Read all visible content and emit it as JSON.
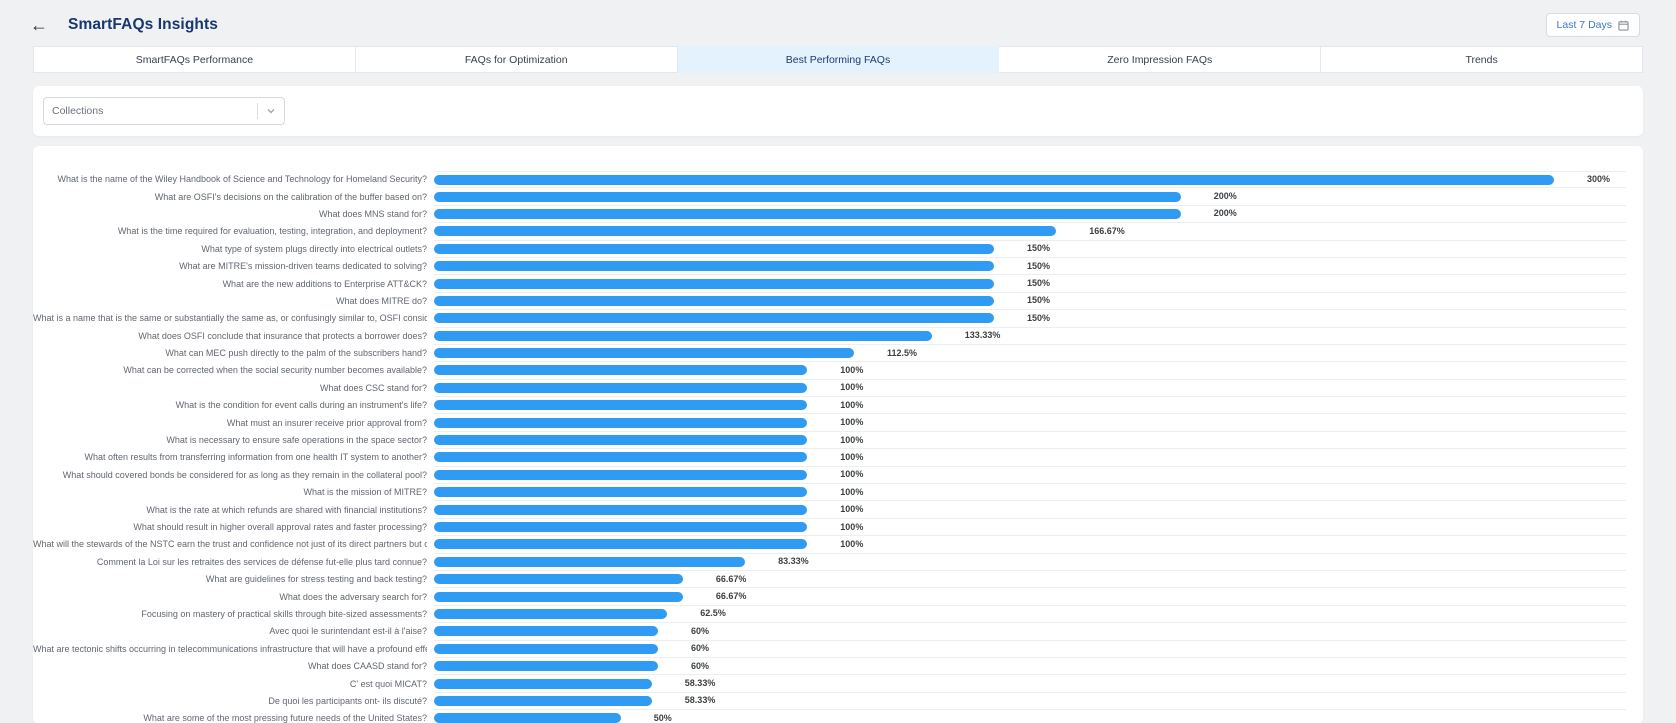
{
  "header": {
    "back_icon": "arrow-left",
    "title": "SmartFAQs Insights",
    "date_range": {
      "label": "Last 7 Days",
      "icon": "calendar"
    }
  },
  "tabs": [
    {
      "label": "SmartFAQs Performance",
      "active": false
    },
    {
      "label": "FAQs for Optimization",
      "active": false
    },
    {
      "label": "Best Performing FAQs",
      "active": true
    },
    {
      "label": "Zero Impression FAQs",
      "active": false
    },
    {
      "label": "Trends",
      "active": false
    }
  ],
  "filters": {
    "collections": {
      "value": "Collections",
      "icon": "chevron-down"
    }
  },
  "colors": {
    "accent_blue": "#2F9BF2",
    "active_tab_bg": "#E3F2FD",
    "title_navy": "#17376E",
    "link_blue": "#3E78C9"
  },
  "chart_data": {
    "type": "bar",
    "orientation": "horizontal",
    "title": "",
    "xlabel": "",
    "ylabel": "",
    "xlim": [
      0,
      300
    ],
    "grid": "row-separators",
    "bar_color": "#2F9BF2",
    "categories": [
      "What is the name of the Wiley Handbook of Science and Technology for Homeland Security?",
      "What are OSFI's decisions on the calibration of the buffer based on?",
      "What does MNS stand for?",
      "What is the time required for evaluation, testing, integration, and deployment?",
      "What type of system plugs directly into electrical outlets?",
      "What are MITRE's mission-driven teams dedicated to solving?",
      "What are the new additions to Enterprise ATT&CK?",
      "What does MITRE do?",
      "What is a name that is the same or substantially the same as, or confusingly similar to, OSFI considered prohibited?",
      "What does OSFI conclude that insurance that protects a borrower does?",
      "What can MEC push directly to the palm of the subscribers hand?",
      "What can be corrected when the social security number becomes available?",
      "What does CSC stand for?",
      "What is the condition for event calls during an instrument's life?",
      "What must an insurer receive prior approval from?",
      "What is necessary to ensure safe operations in the space sector?",
      "What often results from transferring information from one health IT system to another?",
      "What should covered bonds be considered for as long as they remain in the collateral pool?",
      "What is the mission of MITRE?",
      "What is the rate at which refunds are shared with financial institutions?",
      "What should result in higher overall approval rates and faster processing?",
      "What will the stewards of the NSTC earn the trust and confidence not just of its direct partners but of the entire ecosystem?",
      "Comment la Loi sur les retraites des services de défense fut-elle plus tard connue?",
      "What are guidelines for stress testing and back testing?",
      "What does the adversary search for?",
      "Focusing on mastery of practical skills through bite-sized assessments?",
      "Avec quoi le surintendant est-il à l'aise?",
      "What are tectonic shifts occurring in telecommunications infrastructure that will have a profound effect on aviation?",
      "What does CAASD stand for?",
      "C' est quoi MICAT?",
      "De quoi les participants ont- ils discuté?",
      "What are some of the most pressing future needs of the United States?"
    ],
    "values": [
      300,
      200,
      200,
      166.67,
      150,
      150,
      150,
      150,
      150,
      133.33,
      112.5,
      100,
      100,
      100,
      100,
      100,
      100,
      100,
      100,
      100,
      100,
      100,
      83.33,
      66.67,
      66.67,
      62.5,
      60,
      60,
      60,
      58.33,
      58.33,
      50
    ],
    "value_labels": [
      "300%",
      "200%",
      "200%",
      "166.67%",
      "150%",
      "150%",
      "150%",
      "150%",
      "150%",
      "133.33%",
      "112.5%",
      "100%",
      "100%",
      "100%",
      "100%",
      "100%",
      "100%",
      "100%",
      "100%",
      "100%",
      "100%",
      "100%",
      "83.33%",
      "66.67%",
      "66.67%",
      "62.5%",
      "60%",
      "60%",
      "60%",
      "58.33%",
      "58.33%",
      "50%"
    ]
  }
}
